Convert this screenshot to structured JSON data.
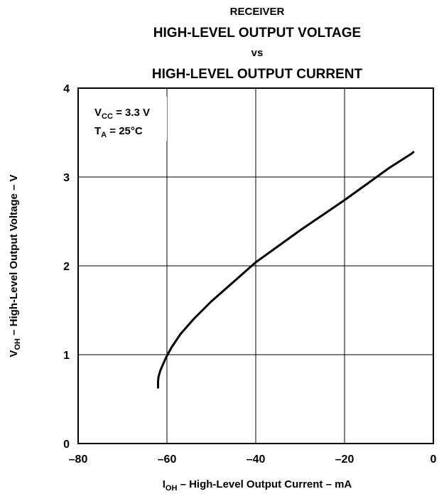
{
  "chart_data": {
    "type": "line",
    "title_lines": [
      "RECEIVER",
      "HIGH-LEVEL OUTPUT VOLTAGE",
      "vs",
      "HIGH-LEVEL OUTPUT CURRENT"
    ],
    "xlabel": {
      "main": "I",
      "sub": "OH",
      "rest": " – High-Level Output Current – mA"
    },
    "ylabel": {
      "main": "V",
      "sub": "OH",
      "rest": " – High-Level Output Voltage – V"
    },
    "xlim": [
      -80,
      0
    ],
    "ylim": [
      0,
      4
    ],
    "xticks": [
      -80,
      -60,
      -40,
      -20,
      0
    ],
    "xtick_labels": [
      "–80",
      "–60",
      "–40",
      "–20",
      "0"
    ],
    "yticks": [
      0,
      1,
      2,
      3,
      4
    ],
    "ytick_labels": [
      "0",
      "1",
      "2",
      "3",
      "4"
    ],
    "grid": true,
    "conditions": [
      {
        "main": "V",
        "sub": "CC",
        "rest": " = 3.3 V"
      },
      {
        "main": "T",
        "sub": "A",
        "rest": " = 25°C"
      }
    ],
    "series": [
      {
        "x": [
          -62.0,
          -62.0,
          -61.9,
          -61.5,
          -61.0,
          -60.2,
          -59.0,
          -57.0,
          -54.0,
          -50.0,
          -45.0,
          -40.0,
          -35.0,
          -30.0,
          -25.0,
          -20.0,
          -15.0,
          -10.0,
          -5.0,
          -4.5
        ],
        "y": [
          0.63,
          0.7,
          0.75,
          0.82,
          0.88,
          0.97,
          1.08,
          1.23,
          1.4,
          1.6,
          1.82,
          2.04,
          2.22,
          2.4,
          2.57,
          2.74,
          2.92,
          3.1,
          3.26,
          3.28
        ]
      }
    ]
  }
}
